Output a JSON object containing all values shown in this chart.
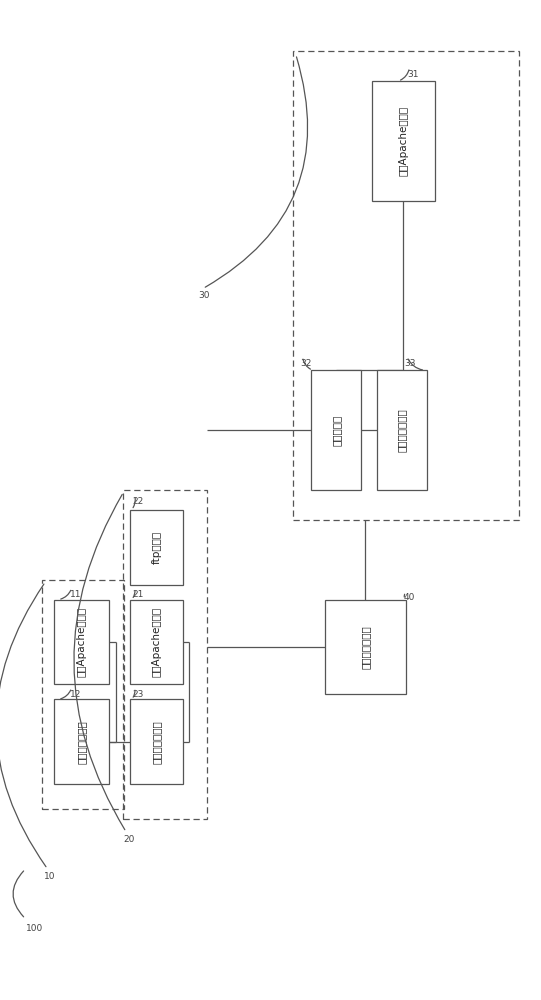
{
  "bg_color": "#ffffff",
  "edge_color": "#555555",
  "text_color": "#222222",
  "tag_color": "#444444",
  "boxes": {
    "b11": {
      "label": "第一Apache服务器",
      "ix": 0.075,
      "iy": 0.6,
      "iw": 0.105,
      "ih": 0.085
    },
    "b12": {
      "label": "内容管理服务器",
      "ix": 0.075,
      "iy": 0.7,
      "iw": 0.105,
      "ih": 0.085
    },
    "b22": {
      "label": "ftp服务器",
      "ix": 0.22,
      "iy": 0.51,
      "iw": 0.1,
      "ih": 0.075
    },
    "b21": {
      "label": "第二Apache服务器",
      "ix": 0.22,
      "iy": 0.6,
      "iw": 0.1,
      "ih": 0.085
    },
    "b23": {
      "label": "第一应用服务器",
      "ix": 0.22,
      "iy": 0.7,
      "iw": 0.1,
      "ih": 0.085
    },
    "b32": {
      "label": "报表服务器",
      "ix": 0.565,
      "iy": 0.37,
      "iw": 0.095,
      "ih": 0.12
    },
    "b33": {
      "label": "第二应用服务器",
      "ix": 0.69,
      "iy": 0.37,
      "iw": 0.095,
      "ih": 0.12
    },
    "b31": {
      "label": "第三Apache服务器",
      "ix": 0.68,
      "iy": 0.08,
      "iw": 0.12,
      "ih": 0.12
    },
    "b40": {
      "label": "数据服务器单元",
      "ix": 0.59,
      "iy": 0.6,
      "iw": 0.155,
      "ih": 0.095
    }
  },
  "dashed_rects": {
    "dr10": {
      "ix": 0.052,
      "iy": 0.58,
      "iw": 0.155,
      "ih": 0.23
    },
    "dr20": {
      "ix": 0.205,
      "iy": 0.49,
      "iw": 0.16,
      "ih": 0.33
    },
    "dr30": {
      "ix": 0.53,
      "iy": 0.05,
      "iw": 0.43,
      "ih": 0.47
    }
  },
  "tags": {
    "100": {
      "ix": 0.02,
      "iy": 0.93,
      "text": "100"
    },
    "10": {
      "ix": 0.056,
      "iy": 0.878,
      "text": "10"
    },
    "11": {
      "ix": 0.105,
      "iy": 0.595,
      "text": "11"
    },
    "12": {
      "ix": 0.105,
      "iy": 0.695,
      "text": "12"
    },
    "20": {
      "ix": 0.206,
      "iy": 0.84,
      "text": "20"
    },
    "22": {
      "ix": 0.224,
      "iy": 0.502,
      "text": "22"
    },
    "21": {
      "ix": 0.224,
      "iy": 0.595,
      "text": "21"
    },
    "23": {
      "ix": 0.224,
      "iy": 0.695,
      "text": "23"
    },
    "30": {
      "ix": 0.35,
      "iy": 0.295,
      "text": "30"
    },
    "31": {
      "ix": 0.748,
      "iy": 0.073,
      "text": "31"
    },
    "32": {
      "ix": 0.543,
      "iy": 0.363,
      "text": "32"
    },
    "33": {
      "ix": 0.742,
      "iy": 0.363,
      "text": "33"
    },
    "40": {
      "ix": 0.74,
      "iy": 0.598,
      "text": "40"
    }
  },
  "label_fontsize": 7.5,
  "tag_fontsize": 6.5
}
